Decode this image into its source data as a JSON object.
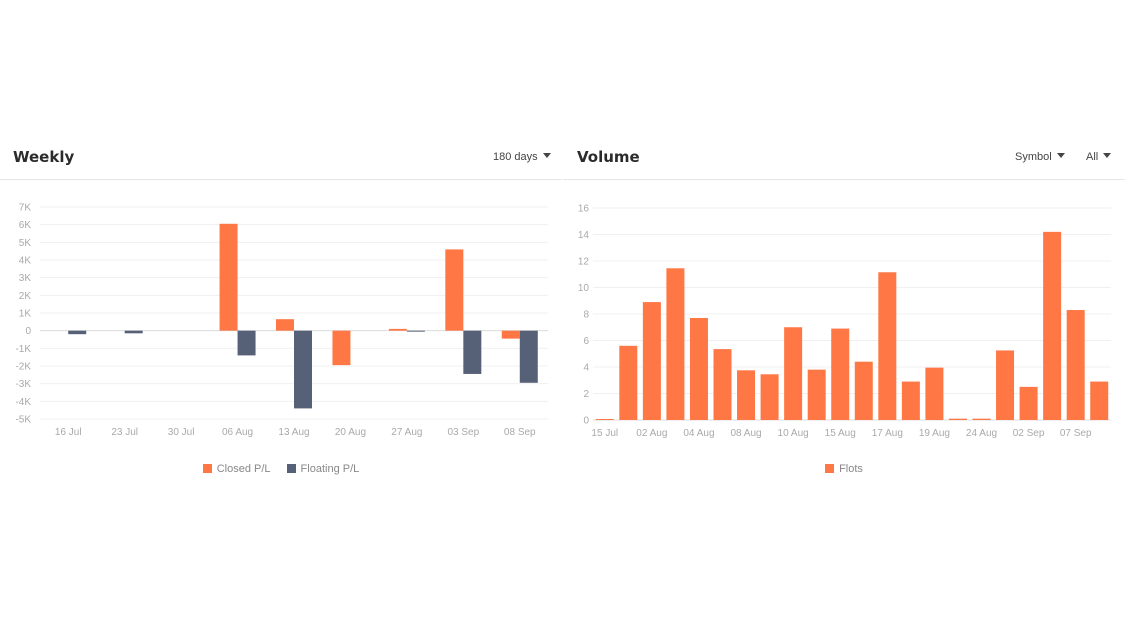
{
  "weekly": {
    "title": "Weekly",
    "range_dropdown": "180 days",
    "legend": [
      {
        "label": "Closed P/L",
        "color": "#ff7744"
      },
      {
        "label": "Floating P/L",
        "color": "#566178"
      }
    ]
  },
  "volume": {
    "title": "Volume",
    "symbol_dropdown": "Symbol",
    "filter_dropdown": "All",
    "legend": [
      {
        "label": "Flots",
        "color": "#ff7744"
      }
    ]
  },
  "chart_data": [
    {
      "type": "bar",
      "title": "Weekly",
      "categories": [
        "16 Jul",
        "23 Jul",
        "30 Jul",
        "06 Aug",
        "13 Aug",
        "20 Aug",
        "27 Aug",
        "03 Sep",
        "08 Sep"
      ],
      "series": [
        {
          "name": "Closed P/L",
          "color": "#ff7744",
          "values": [
            0,
            0,
            0,
            6050,
            650,
            -1950,
            100,
            4600,
            -450
          ]
        },
        {
          "name": "Floating P/L",
          "color": "#566178",
          "values": [
            -200,
            -150,
            0,
            -1400,
            -4400,
            0,
            -50,
            -2450,
            -2950
          ]
        }
      ],
      "ylim": [
        -5000,
        7000
      ],
      "yticks": [
        -5000,
        -4000,
        -3000,
        -2000,
        -1000,
        0,
        1000,
        2000,
        3000,
        4000,
        5000,
        6000,
        7000
      ],
      "ytick_labels": [
        "-5K",
        "-4K",
        "-3K",
        "-2K",
        "-1K",
        "0",
        "1K",
        "2K",
        "3K",
        "4K",
        "5K",
        "6K",
        "7K"
      ],
      "grid": true,
      "legend_position": "bottom"
    },
    {
      "type": "bar",
      "title": "Volume",
      "categories": [
        "15 Jul",
        "",
        "02 Aug",
        "",
        "04 Aug",
        "",
        "08 Aug",
        "",
        "10 Aug",
        "",
        "15 Aug",
        "",
        "17 Aug",
        "",
        "19 Aug",
        "",
        "24 Aug",
        "",
        "02 Sep",
        "",
        "07 Sep",
        ""
      ],
      "series": [
        {
          "name": "Flots",
          "color": "#ff7744",
          "values": [
            0.05,
            5.6,
            8.9,
            11.45,
            7.7,
            5.35,
            3.75,
            3.45,
            7.0,
            3.8,
            6.9,
            4.4,
            11.15,
            2.9,
            3.95,
            0.1,
            0.1,
            5.25,
            2.5,
            14.2,
            8.3,
            2.9
          ]
        }
      ],
      "ylim": [
        0,
        16
      ],
      "yticks": [
        0,
        2,
        4,
        6,
        8,
        10,
        12,
        14,
        16
      ],
      "grid": true,
      "legend_position": "bottom"
    }
  ]
}
